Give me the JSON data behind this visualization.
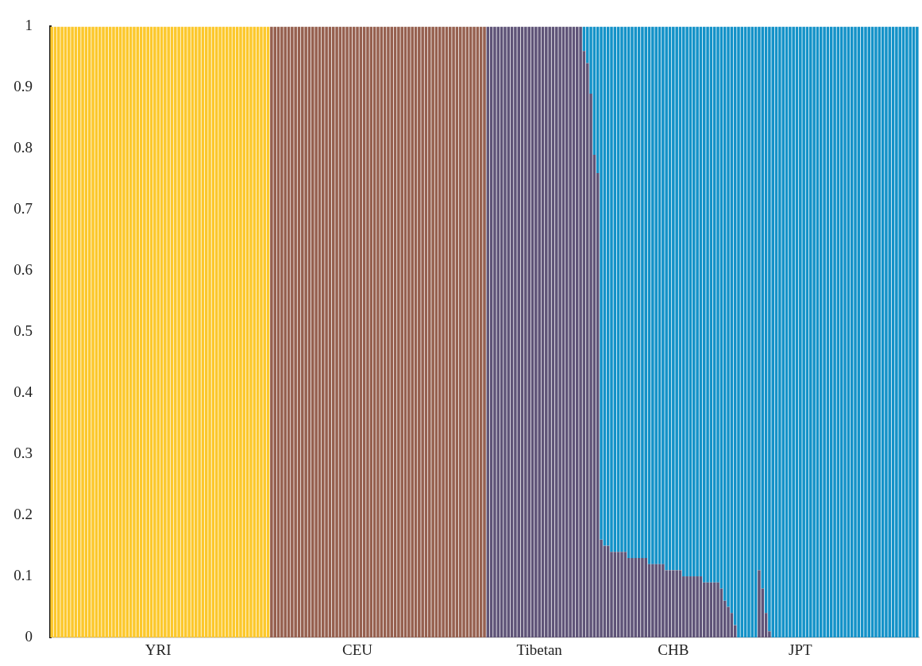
{
  "chart_data": {
    "type": "bar",
    "stacked": true,
    "categories": [
      null,
      null,
      null,
      null,
      null,
      null,
      null,
      null,
      null,
      null,
      null,
      null,
      null,
      null,
      null,
      null,
      null,
      null,
      null,
      null,
      null,
      null,
      null,
      null,
      null,
      null,
      null,
      null,
      null,
      null,
      null,
      "YRI",
      null,
      null,
      null,
      null,
      null,
      null,
      null,
      null,
      null,
      null,
      null,
      null,
      null,
      null,
      null,
      null,
      null,
      null,
      null,
      null,
      null,
      null,
      null,
      null,
      null,
      null,
      null,
      null,
      null,
      null,
      null,
      null,
      null,
      null,
      null,
      null,
      null,
      null,
      null,
      null,
      null,
      null,
      null,
      null,
      null,
      null,
      null,
      null,
      null,
      null,
      null,
      null,
      null,
      null,
      null,
      null,
      null,
      "CEU",
      null,
      null,
      null,
      null,
      null,
      null,
      null,
      null,
      null,
      null,
      null,
      null,
      null,
      null,
      null,
      null,
      null,
      null,
      null,
      null,
      null,
      null,
      null,
      null,
      null,
      null,
      null,
      null,
      null,
      null,
      null,
      null,
      null,
      null,
      null,
      null,
      null,
      null,
      null,
      null,
      null,
      null,
      null,
      null,
      null,
      null,
      null,
      null,
      null,
      null,
      null,
      null,
      "Tibetan",
      null,
      null,
      null,
      null,
      null,
      null,
      null,
      null,
      null,
      null,
      null,
      null,
      null,
      null,
      null,
      null,
      null,
      null,
      null,
      null,
      null,
      null,
      null,
      null,
      null,
      null,
      null,
      null,
      null,
      null,
      null,
      null,
      null,
      null,
      null,
      null,
      null,
      null,
      "CHB",
      null,
      null,
      null,
      null,
      null,
      null,
      null,
      null,
      null,
      null,
      null,
      null,
      null,
      null,
      null,
      null,
      null,
      null,
      null,
      null,
      null,
      null,
      null,
      null,
      null,
      null,
      null,
      null,
      null,
      null,
      null,
      null,
      null,
      null,
      null,
      null,
      "JPT",
      null,
      null,
      null,
      null,
      null,
      null,
      null,
      null,
      null,
      null,
      null,
      null,
      null,
      null,
      null,
      null,
      null,
      null,
      null,
      null,
      null,
      null,
      null,
      null,
      null,
      null,
      null,
      null,
      null,
      null,
      null,
      null,
      null,
      null
    ],
    "ylim": [
      0,
      1
    ],
    "yticks": [
      0,
      0.1,
      0.2,
      0.3,
      0.4,
      0.5,
      0.6,
      0.7,
      0.8,
      0.9,
      1
    ],
    "grid": false,
    "series": [
      {
        "color": "#fcc82c",
        "values": [
          1,
          1,
          1,
          1,
          1,
          1,
          1,
          1,
          1,
          1,
          1,
          1,
          1,
          1,
          1,
          1,
          1,
          1,
          1,
          1,
          1,
          1,
          1,
          1,
          1,
          1,
          1,
          1,
          1,
          1,
          1,
          1,
          1,
          1,
          1,
          1,
          1,
          1,
          1,
          1,
          1,
          1,
          1,
          1,
          1,
          1,
          1,
          1,
          1,
          1,
          1,
          1,
          1,
          1,
          1,
          1,
          1,
          1,
          1,
          1,
          1,
          1,
          1,
          1,
          0,
          0,
          0,
          0,
          0,
          0,
          0,
          0,
          0,
          0,
          0,
          0,
          0,
          0,
          0,
          0,
          0,
          0,
          0,
          0,
          0,
          0,
          0,
          0,
          0,
          0,
          0,
          0,
          0,
          0,
          0,
          0,
          0,
          0,
          0,
          0,
          0,
          0,
          0,
          0,
          0,
          0,
          0,
          0,
          0,
          0,
          0,
          0,
          0,
          0,
          0,
          0,
          0,
          0,
          0,
          0,
          0,
          0,
          0,
          0,
          0,
          0,
          0,
          0,
          0,
          0,
          0,
          0,
          0,
          0,
          0,
          0,
          0,
          0,
          0,
          0,
          0,
          0,
          0,
          0,
          0,
          0,
          0,
          0,
          0,
          0,
          0,
          0,
          0,
          0,
          0,
          0,
          0,
          0,
          0,
          0,
          0,
          0,
          0,
          0,
          0,
          0,
          0,
          0,
          0,
          0,
          0,
          0,
          0,
          0,
          0,
          0,
          0,
          0,
          0,
          0,
          0,
          0,
          0,
          0,
          0,
          0,
          0,
          0,
          0,
          0,
          0,
          0,
          0,
          0,
          0,
          0,
          0,
          0,
          0,
          0,
          0,
          0,
          0,
          0,
          0,
          0,
          0,
          0,
          0,
          0,
          0,
          0,
          0,
          0,
          0,
          0,
          0,
          0,
          0,
          0,
          0,
          0,
          0,
          0,
          0,
          0,
          0,
          0,
          0,
          0,
          0,
          0,
          0,
          0,
          0,
          0,
          0,
          0,
          0,
          0,
          0,
          0,
          0,
          0,
          0,
          0,
          0,
          0,
          0,
          0,
          0,
          0,
          0
        ]
      },
      {
        "color": "#96604f",
        "values": [
          0,
          0,
          0,
          0,
          0,
          0,
          0,
          0,
          0,
          0,
          0,
          0,
          0,
          0,
          0,
          0,
          0,
          0,
          0,
          0,
          0,
          0,
          0,
          0,
          0,
          0,
          0,
          0,
          0,
          0,
          0,
          0,
          0,
          0,
          0,
          0,
          0,
          0,
          0,
          0,
          0,
          0,
          0,
          0,
          0,
          0,
          0,
          0,
          0,
          0,
          0,
          0,
          0,
          0,
          0,
          0,
          0,
          0,
          0,
          0,
          0,
          0,
          0,
          0,
          1,
          1,
          1,
          1,
          1,
          1,
          1,
          1,
          1,
          1,
          1,
          1,
          1,
          1,
          1,
          1,
          1,
          1,
          1,
          1,
          1,
          1,
          1,
          1,
          1,
          1,
          1,
          1,
          1,
          1,
          1,
          1,
          1,
          1,
          1,
          1,
          1,
          1,
          1,
          1,
          1,
          1,
          1,
          1,
          1,
          1,
          1,
          1,
          1,
          1,
          1,
          1,
          1,
          1,
          1,
          1,
          1,
          1,
          1,
          1,
          1,
          1,
          1,
          0,
          0,
          0,
          0,
          0,
          0,
          0,
          0,
          0,
          0,
          0,
          0,
          0,
          0,
          0,
          0,
          0,
          0,
          0,
          0,
          0,
          0,
          0,
          0,
          0,
          0,
          0,
          0,
          0,
          0,
          0,
          0,
          0,
          0,
          0,
          0,
          0,
          0,
          0,
          0,
          0,
          0,
          0,
          0,
          0,
          0,
          0,
          0,
          0,
          0,
          0,
          0,
          0,
          0,
          0,
          0,
          0,
          0,
          0,
          0,
          0,
          0,
          0,
          0,
          0,
          0,
          0,
          0,
          0,
          0,
          0,
          0,
          0,
          0,
          0,
          0,
          0,
          0,
          0,
          0,
          0,
          0,
          0,
          0,
          0,
          0,
          0,
          0,
          0,
          0,
          0,
          0,
          0,
          0,
          0,
          0,
          0,
          0,
          0,
          0,
          0,
          0,
          0,
          0,
          0,
          0,
          0,
          0,
          0,
          0,
          0,
          0,
          0,
          0,
          0,
          0,
          0,
          0,
          0,
          0,
          0,
          0,
          0,
          0,
          0,
          0
        ]
      },
      {
        "color": "#5f5478",
        "values": [
          0,
          0,
          0,
          0,
          0,
          0,
          0,
          0,
          0,
          0,
          0,
          0,
          0,
          0,
          0,
          0,
          0,
          0,
          0,
          0,
          0,
          0,
          0,
          0,
          0,
          0,
          0,
          0,
          0,
          0,
          0,
          0,
          0,
          0,
          0,
          0,
          0,
          0,
          0,
          0,
          0,
          0,
          0,
          0,
          0,
          0,
          0,
          0,
          0,
          0,
          0,
          0,
          0,
          0,
          0,
          0,
          0,
          0,
          0,
          0,
          0,
          0,
          0,
          0,
          0,
          0,
          0,
          0,
          0,
          0,
          0,
          0,
          0,
          0,
          0,
          0,
          0,
          0,
          0,
          0,
          0,
          0,
          0,
          0,
          0,
          0,
          0,
          0,
          0,
          0,
          0,
          0,
          0,
          0,
          0,
          0,
          0,
          0,
          0,
          0,
          0,
          0,
          0,
          0,
          0,
          0,
          0,
          0,
          0,
          0,
          0,
          0,
          0,
          0,
          0,
          0,
          0,
          0,
          0,
          0,
          0,
          0,
          0,
          0,
          0,
          0,
          0,
          1,
          1,
          1,
          1,
          1,
          1,
          1,
          1,
          1,
          1,
          1,
          1,
          1,
          1,
          1,
          1,
          1,
          1,
          1,
          1,
          1,
          1,
          1,
          1,
          1,
          1,
          1,
          1,
          0.96,
          0.94,
          0.89,
          0.79,
          0.76,
          0.16,
          0.15,
          0.15,
          0.14,
          0.14,
          0.14,
          0.14,
          0.14,
          0.13,
          0.13,
          0.13,
          0.13,
          0.13,
          0.13,
          0.12,
          0.12,
          0.12,
          0.12,
          0.12,
          0.11,
          0.11,
          0.11,
          0.11,
          0.11,
          0.1,
          0.1,
          0.1,
          0.1,
          0.1,
          0.1,
          0.09,
          0.09,
          0.09,
          0.09,
          0.09,
          0.08,
          0.06,
          0.05,
          0.04,
          0.02,
          0,
          0,
          0,
          0,
          0,
          0,
          0.11,
          0.08,
          0.04,
          0.01,
          0,
          0,
          0,
          0,
          0,
          0,
          0,
          0,
          0,
          0,
          0,
          0,
          0,
          0,
          0,
          0,
          0,
          0,
          0,
          0,
          0,
          0,
          0,
          0,
          0,
          0,
          0,
          0,
          0,
          0,
          0,
          0,
          0,
          0,
          0,
          0,
          0,
          0,
          0,
          0,
          0,
          0,
          0
        ]
      },
      {
        "color": "#1492c8",
        "values": [
          0,
          0,
          0,
          0,
          0,
          0,
          0,
          0,
          0,
          0,
          0,
          0,
          0,
          0,
          0,
          0,
          0,
          0,
          0,
          0,
          0,
          0,
          0,
          0,
          0,
          0,
          0,
          0,
          0,
          0,
          0,
          0,
          0,
          0,
          0,
          0,
          0,
          0,
          0,
          0,
          0,
          0,
          0,
          0,
          0,
          0,
          0,
          0,
          0,
          0,
          0,
          0,
          0,
          0,
          0,
          0,
          0,
          0,
          0,
          0,
          0,
          0,
          0,
          0,
          0,
          0,
          0,
          0,
          0,
          0,
          0,
          0,
          0,
          0,
          0,
          0,
          0,
          0,
          0,
          0,
          0,
          0,
          0,
          0,
          0,
          0,
          0,
          0,
          0,
          0,
          0,
          0,
          0,
          0,
          0,
          0,
          0,
          0,
          0,
          0,
          0,
          0,
          0,
          0,
          0,
          0,
          0,
          0,
          0,
          0,
          0,
          0,
          0,
          0,
          0,
          0,
          0,
          0,
          0,
          0,
          0,
          0,
          0,
          0,
          0,
          0,
          0,
          0,
          0,
          0,
          0,
          0,
          0,
          0,
          0,
          0,
          0,
          0,
          0,
          0,
          0,
          0,
          0,
          0,
          0,
          0,
          0,
          0,
          0,
          0,
          0,
          0,
          0,
          0,
          0,
          0.04,
          0.06,
          0.11,
          0.21,
          0.24,
          0.84,
          0.85,
          0.85,
          0.86,
          0.86,
          0.86,
          0.86,
          0.86,
          0.87,
          0.87,
          0.87,
          0.87,
          0.87,
          0.87,
          0.88,
          0.88,
          0.88,
          0.88,
          0.88,
          0.89,
          0.89,
          0.89,
          0.89,
          0.89,
          0.9,
          0.9,
          0.9,
          0.9,
          0.9,
          0.9,
          0.91,
          0.91,
          0.91,
          0.91,
          0.91,
          0.92,
          0.94,
          0.95,
          0.96,
          0.98,
          1,
          1,
          1,
          1,
          1,
          1,
          0.89,
          0.92,
          0.96,
          0.99,
          1,
          1,
          1,
          1,
          1,
          1,
          1,
          1,
          1,
          1,
          1,
          1,
          1,
          1,
          1,
          1,
          1,
          1,
          1,
          1,
          1,
          1,
          1,
          1,
          1,
          1,
          1,
          1,
          1,
          1,
          1,
          1,
          1,
          1,
          1,
          1,
          1,
          1,
          1,
          1,
          1,
          1,
          1
        ]
      }
    ]
  }
}
